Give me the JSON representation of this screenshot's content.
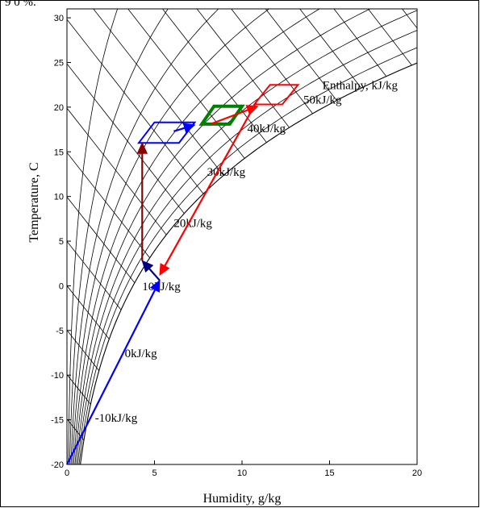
{
  "top_cut_text": "9 0 %.",
  "chart_data": {
    "type": "line",
    "title": "",
    "xlabel": "Humidity, g/kg",
    "ylabel": "Temperature, C",
    "xlim": [
      0,
      20
    ],
    "ylim": [
      -20,
      31
    ],
    "xticks": [
      0,
      5,
      10,
      15,
      20
    ],
    "yticks": [
      -20,
      -15,
      -10,
      -5,
      0,
      5,
      10,
      15,
      20,
      25,
      30
    ],
    "grid": false,
    "enthalpy_title": "Enthalpy, kJ/kg",
    "enthalpy_labels": [
      {
        "text": "-10kJ/kg",
        "x": 1.6,
        "y": -15.2
      },
      {
        "text": "0kJ/kg",
        "x": 3.3,
        "y": -8.0
      },
      {
        "text": "10kJ/kg",
        "x": 4.3,
        "y": -0.5
      },
      {
        "text": "20kJ/kg",
        "x": 6.1,
        "y": 6.6
      },
      {
        "text": "30kJ/kg",
        "x": 8.0,
        "y": 12.3
      },
      {
        "text": "40kJ/kg",
        "x": 10.3,
        "y": 17.2
      },
      {
        "text": "50kJ/kg",
        "x": 13.5,
        "y": 20.4
      }
    ],
    "enthalpy_title_pos": {
      "x": 14.6,
      "y": 22.0
    },
    "rh_fractions": [
      0.1,
      0.2,
      0.3,
      0.4,
      0.5,
      0.6,
      0.7,
      0.8,
      0.9,
      1.0
    ],
    "enthalpy_values": [
      -20,
      -15,
      -10,
      -5,
      0,
      5,
      10,
      15,
      20,
      25,
      30,
      35,
      40,
      45,
      50,
      55,
      60,
      65,
      70,
      75,
      80
    ],
    "arrows": [
      {
        "color": "#0000ff",
        "from": [
          0,
          -20
        ],
        "to": [
          5.3,
          0.6
        ]
      },
      {
        "color": "#000080",
        "from": [
          5.3,
          0.6
        ],
        "to": [
          4.3,
          2.8
        ]
      },
      {
        "color": "#8b0000",
        "from": [
          4.3,
          2.8
        ],
        "to": [
          4.3,
          16.0
        ]
      },
      {
        "color": "#0000ff",
        "from": [
          6.1,
          17.3
        ],
        "to": [
          7.3,
          18.0
        ]
      },
      {
        "color": "#ff0000",
        "from": [
          10.8,
          20.5
        ],
        "to": [
          5.3,
          1.2
        ]
      },
      {
        "color": "#ff0000",
        "from": [
          8.2,
          18.1
        ],
        "to": [
          10.9,
          20.1
        ]
      }
    ],
    "boxes": [
      {
        "color": "#0000ff",
        "width": 2,
        "points": [
          [
            5.0,
            18.3
          ],
          [
            7.3,
            18.3
          ],
          [
            6.4,
            16.0
          ],
          [
            4.1,
            16.0
          ]
        ]
      },
      {
        "color": "#008000",
        "width": 4,
        "points": [
          [
            8.4,
            20.1
          ],
          [
            10.0,
            20.1
          ],
          [
            9.3,
            18.1
          ],
          [
            7.7,
            18.1
          ]
        ]
      },
      {
        "color": "#ff0000",
        "width": 2,
        "points": [
          [
            11.6,
            22.5
          ],
          [
            13.2,
            22.5
          ],
          [
            12.3,
            20.3
          ],
          [
            10.7,
            20.3
          ]
        ]
      }
    ]
  }
}
